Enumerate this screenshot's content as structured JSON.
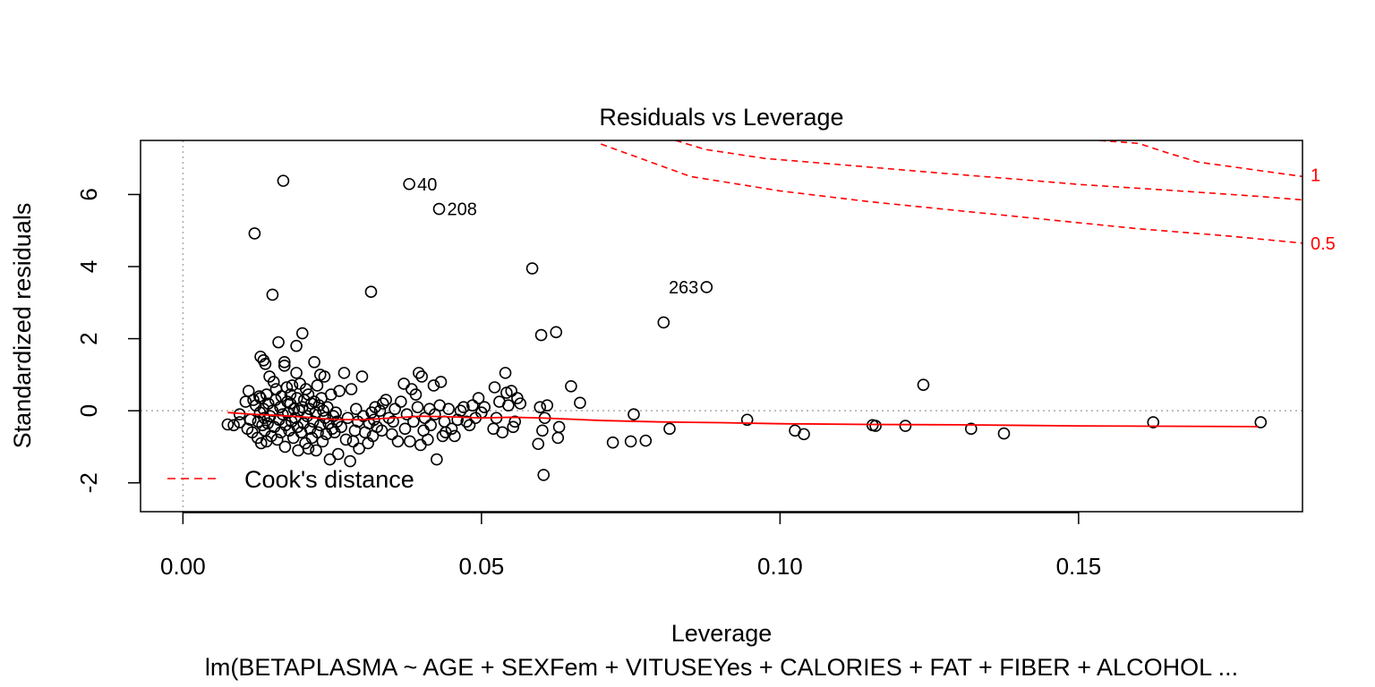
{
  "chart_data": {
    "type": "scatter",
    "title": "Residuals vs Leverage",
    "xlabel": "Leverage",
    "ylabel": "Standardized residuals",
    "caption": "lm(BETAPLASMA ~ AGE + SEXFem + VITUSEYes + CALORIES + FAT + FIBER + ALCOHOL ...",
    "xlim": [
      -0.0071,
      0.1875
    ],
    "ylim": [
      -2.8,
      7.5
    ],
    "xticks": [
      "0.00",
      "0.05",
      "0.10",
      "0.15"
    ],
    "xtick_values": [
      0,
      0.05,
      0.1,
      0.15
    ],
    "yticks": [
      "-2",
      "0",
      "2",
      "4",
      "6"
    ],
    "ytick_values": [
      -2,
      0,
      2,
      4,
      6
    ],
    "colors": {
      "points": "#000000",
      "smoother": "#ff0000",
      "cooks": "#ff0000",
      "reference": "#aaaaaa"
    },
    "legend": {
      "position": "bottom-left",
      "label": "Cook's distance"
    },
    "labeled_points": [
      {
        "label": "40",
        "x": 0.0379,
        "y": 6.29
      },
      {
        "label": "208",
        "x": 0.0429,
        "y": 5.6
      },
      {
        "label": "263",
        "x": 0.0877,
        "y": 3.43
      }
    ],
    "cooks_curves": [
      {
        "level": "1",
        "x": [
          0.0825,
          0.0875,
          0.0975,
          0.11,
          0.125,
          0.14,
          0.15,
          0.165,
          0.18,
          0.1875
        ],
        "y": [
          7.5,
          7.25,
          7.0,
          6.83,
          6.62,
          6.42,
          6.28,
          6.12,
          5.95,
          5.85
        ]
      },
      {
        "level": "1",
        "x": [
          0.1535,
          0.16,
          0.165,
          0.17,
          0.1875
        ],
        "y": [
          7.5,
          7.42,
          7.15,
          6.9,
          6.5
        ]
      },
      {
        "level": "0.5",
        "x": [
          0.07,
          0.085,
          0.1,
          0.115,
          0.13,
          0.145,
          0.16,
          0.175,
          0.1875
        ],
        "y": [
          7.4,
          6.5,
          6.1,
          5.8,
          5.55,
          5.3,
          5.05,
          4.85,
          4.65
        ]
      }
    ],
    "cooks_labels": [
      {
        "label": "1",
        "y": 6.55
      },
      {
        "label": "0.5",
        "y": 4.65
      }
    ],
    "smoother": {
      "x": [
        0.0075,
        0.012,
        0.016,
        0.02,
        0.025,
        0.03,
        0.035,
        0.04,
        0.045,
        0.05,
        0.055,
        0.06,
        0.07,
        0.08,
        0.09,
        0.1,
        0.115,
        0.13,
        0.15,
        0.165,
        0.18
      ],
      "y": [
        -0.05,
        -0.1,
        -0.13,
        -0.17,
        -0.24,
        -0.25,
        -0.2,
        -0.15,
        -0.17,
        -0.2,
        -0.18,
        -0.2,
        -0.27,
        -0.31,
        -0.33,
        -0.36,
        -0.38,
        -0.39,
        -0.42,
        -0.43,
        -0.44
      ]
    },
    "points": [
      [
        0.0075,
        -0.38
      ],
      [
        0.0085,
        -0.4
      ],
      [
        0.0095,
        -0.32
      ],
      [
        0.0095,
        -0.1
      ],
      [
        0.0105,
        0.25
      ],
      [
        0.0108,
        -0.5
      ],
      [
        0.011,
        0.55
      ],
      [
        0.0113,
        -0.25
      ],
      [
        0.0116,
        -0.6
      ],
      [
        0.0118,
        0.3
      ],
      [
        0.012,
        4.92
      ],
      [
        0.0122,
        0.15
      ],
      [
        0.0125,
        -0.75
      ],
      [
        0.0126,
        -0.3
      ],
      [
        0.0128,
        0.4
      ],
      [
        0.0129,
        -0.05
      ],
      [
        0.013,
        1.5
      ],
      [
        0.013,
        0.35
      ],
      [
        0.0131,
        -0.9
      ],
      [
        0.0133,
        -0.4
      ],
      [
        0.0135,
        1.4
      ],
      [
        0.0135,
        0.05
      ],
      [
        0.0136,
        -0.2
      ],
      [
        0.0137,
        -0.55
      ],
      [
        0.0138,
        1.3
      ],
      [
        0.014,
        0.45
      ],
      [
        0.014,
        -0.85
      ],
      [
        0.0142,
        -0.35
      ],
      [
        0.0143,
        0.2
      ],
      [
        0.0145,
        0.95
      ],
      [
        0.0146,
        -0.15
      ],
      [
        0.0148,
        -0.7
      ],
      [
        0.015,
        3.22
      ],
      [
        0.015,
        0.0
      ],
      [
        0.0152,
        0.8
      ],
      [
        0.0153,
        -0.45
      ],
      [
        0.0155,
        0.3
      ],
      [
        0.0156,
        0.6
      ],
      [
        0.0158,
        -0.8
      ],
      [
        0.016,
        1.9
      ],
      [
        0.0161,
        -0.25
      ],
      [
        0.0163,
        0.1
      ],
      [
        0.0164,
        -0.6
      ],
      [
        0.0165,
        0.4
      ],
      [
        0.0167,
        -0.1
      ],
      [
        0.0168,
        6.38
      ],
      [
        0.017,
        1.35
      ],
      [
        0.017,
        1.25
      ],
      [
        0.0171,
        -1.0
      ],
      [
        0.0172,
        -0.4
      ],
      [
        0.0174,
        0.65
      ],
      [
        0.0175,
        0.25
      ],
      [
        0.0176,
        -0.05
      ],
      [
        0.0178,
        -0.55
      ],
      [
        0.018,
        0.45
      ],
      [
        0.018,
        0.2
      ],
      [
        0.0182,
        -0.3
      ],
      [
        0.0183,
        0.7
      ],
      [
        0.0185,
        -0.75
      ],
      [
        0.0186,
        0.05
      ],
      [
        0.0188,
        -0.2
      ],
      [
        0.019,
        1.8
      ],
      [
        0.019,
        1.05
      ],
      [
        0.0191,
        0.35
      ],
      [
        0.0192,
        -0.45
      ],
      [
        0.0193,
        -1.1
      ],
      [
        0.0195,
        0.0
      ],
      [
        0.0196,
        0.75
      ],
      [
        0.0198,
        -0.6
      ],
      [
        0.02,
        2.15
      ],
      [
        0.02,
        0.1
      ],
      [
        0.0202,
        -0.35
      ],
      [
        0.0203,
        0.3
      ],
      [
        0.0205,
        -0.9
      ],
      [
        0.0206,
        0.6
      ],
      [
        0.0208,
        -0.15
      ],
      [
        0.021,
        -1.05
      ],
      [
        0.021,
        0.45
      ],
      [
        0.0212,
        0.05
      ],
      [
        0.0213,
        -0.5
      ],
      [
        0.0215,
        0.2
      ],
      [
        0.0216,
        -0.75
      ],
      [
        0.0218,
        -0.3
      ],
      [
        0.022,
        1.35
      ],
      [
        0.022,
        0.25
      ],
      [
        0.0222,
        -0.05
      ],
      [
        0.0223,
        -1.1
      ],
      [
        0.0225,
        0.7
      ],
      [
        0.0226,
        -0.6
      ],
      [
        0.0228,
        0.15
      ],
      [
        0.023,
        1.0
      ],
      [
        0.023,
        -0.4
      ],
      [
        0.0232,
        0.35
      ],
      [
        0.0234,
        -0.85
      ],
      [
        0.0235,
        0.0
      ],
      [
        0.0237,
        0.95
      ],
      [
        0.0238,
        -0.2
      ],
      [
        0.024,
        -0.65
      ],
      [
        0.0242,
        0.1
      ],
      [
        0.0244,
        -0.35
      ],
      [
        0.0246,
        -1.35
      ],
      [
        0.0248,
        0.45
      ],
      [
        0.025,
        -0.5
      ],
      [
        0.0252,
        -0.15
      ],
      [
        0.0254,
        -0.6
      ],
      [
        0.0256,
        -0.05
      ],
      [
        0.0258,
        -0.3
      ],
      [
        0.026,
        -1.2
      ],
      [
        0.0262,
        0.55
      ],
      [
        0.0265,
        -0.45
      ],
      [
        0.027,
        1.05
      ],
      [
        0.0273,
        -0.8
      ],
      [
        0.0276,
        -0.2
      ],
      [
        0.028,
        -1.4
      ],
      [
        0.0282,
        0.6
      ],
      [
        0.0285,
        -0.85
      ],
      [
        0.0288,
        -0.55
      ],
      [
        0.029,
        0.05
      ],
      [
        0.0293,
        -0.3
      ],
      [
        0.0295,
        -1.05
      ],
      [
        0.03,
        0.95
      ],
      [
        0.0302,
        -0.15
      ],
      [
        0.0305,
        -0.6
      ],
      [
        0.031,
        -0.9
      ],
      [
        0.0312,
        -0.35
      ],
      [
        0.0315,
        3.3
      ],
      [
        0.0316,
        -0.05
      ],
      [
        0.0318,
        -0.7
      ],
      [
        0.032,
        -0.25
      ],
      [
        0.0322,
        0.1
      ],
      [
        0.0325,
        -0.45
      ],
      [
        0.033,
        0.0
      ],
      [
        0.0333,
        -0.55
      ],
      [
        0.0335,
        0.2
      ],
      [
        0.034,
        0.3
      ],
      [
        0.0345,
        -0.2
      ],
      [
        0.035,
        -0.65
      ],
      [
        0.0352,
        -0.3
      ],
      [
        0.0355,
        0.05
      ],
      [
        0.036,
        -0.85
      ],
      [
        0.0365,
        0.25
      ],
      [
        0.037,
        0.75
      ],
      [
        0.0372,
        -0.5
      ],
      [
        0.0375,
        -0.1
      ],
      [
        0.0379,
        6.29
      ],
      [
        0.038,
        -0.85
      ],
      [
        0.0383,
        0.6
      ],
      [
        0.0386,
        -0.3
      ],
      [
        0.039,
        0.45
      ],
      [
        0.0393,
        0.1
      ],
      [
        0.0395,
        1.05
      ],
      [
        0.0398,
        -0.95
      ],
      [
        0.04,
        0.95
      ],
      [
        0.0403,
        -0.55
      ],
      [
        0.0405,
        -0.2
      ],
      [
        0.041,
        -0.8
      ],
      [
        0.0413,
        0.05
      ],
      [
        0.0415,
        -0.4
      ],
      [
        0.042,
        0.7
      ],
      [
        0.0422,
        -0.1
      ],
      [
        0.0425,
        -1.35
      ],
      [
        0.0429,
        5.6
      ],
      [
        0.043,
        0.15
      ],
      [
        0.0432,
        0.8
      ],
      [
        0.0435,
        -0.7
      ],
      [
        0.0438,
        -0.3
      ],
      [
        0.044,
        -0.6
      ],
      [
        0.0445,
        0.05
      ],
      [
        0.045,
        -0.5
      ],
      [
        0.0455,
        -0.7
      ],
      [
        0.046,
        -0.25
      ],
      [
        0.0465,
        0.0
      ],
      [
        0.047,
        0.1
      ],
      [
        0.0475,
        -0.3
      ],
      [
        0.048,
        -0.4
      ],
      [
        0.0485,
        0.15
      ],
      [
        0.049,
        -0.2
      ],
      [
        0.0495,
        0.35
      ],
      [
        0.05,
        -0.05
      ],
      [
        0.0505,
        0.1
      ],
      [
        0.052,
        -0.5
      ],
      [
        0.0522,
        0.65
      ],
      [
        0.0525,
        -0.2
      ],
      [
        0.053,
        0.25
      ],
      [
        0.0535,
        -0.6
      ],
      [
        0.054,
        1.05
      ],
      [
        0.0542,
        0.5
      ],
      [
        0.0545,
        0.15
      ],
      [
        0.055,
        0.55
      ],
      [
        0.0553,
        -0.45
      ],
      [
        0.0556,
        -0.3
      ],
      [
        0.056,
        0.35
      ],
      [
        0.0565,
        0.2
      ],
      [
        0.0585,
        3.95
      ],
      [
        0.0595,
        -0.92
      ],
      [
        0.0598,
        0.1
      ],
      [
        0.06,
        2.1
      ],
      [
        0.0602,
        -0.55
      ],
      [
        0.0604,
        -1.78
      ],
      [
        0.0606,
        -0.2
      ],
      [
        0.061,
        0.15
      ],
      [
        0.0625,
        2.18
      ],
      [
        0.0628,
        -0.75
      ],
      [
        0.063,
        -0.45
      ],
      [
        0.065,
        0.68
      ],
      [
        0.0665,
        0.22
      ],
      [
        0.072,
        -0.88
      ],
      [
        0.075,
        -0.85
      ],
      [
        0.0755,
        -0.1
      ],
      [
        0.0775,
        -0.83
      ],
      [
        0.0805,
        2.45
      ],
      [
        0.0815,
        -0.5
      ],
      [
        0.0877,
        3.43
      ],
      [
        0.0945,
        -0.25
      ],
      [
        0.1025,
        -0.55
      ],
      [
        0.104,
        -0.65
      ],
      [
        0.1155,
        -0.4
      ],
      [
        0.116,
        -0.42
      ],
      [
        0.121,
        -0.42
      ],
      [
        0.124,
        0.72
      ],
      [
        0.132,
        -0.5
      ],
      [
        0.1375,
        -0.63
      ],
      [
        0.1625,
        -0.32
      ],
      [
        0.1805,
        -0.32
      ]
    ]
  }
}
